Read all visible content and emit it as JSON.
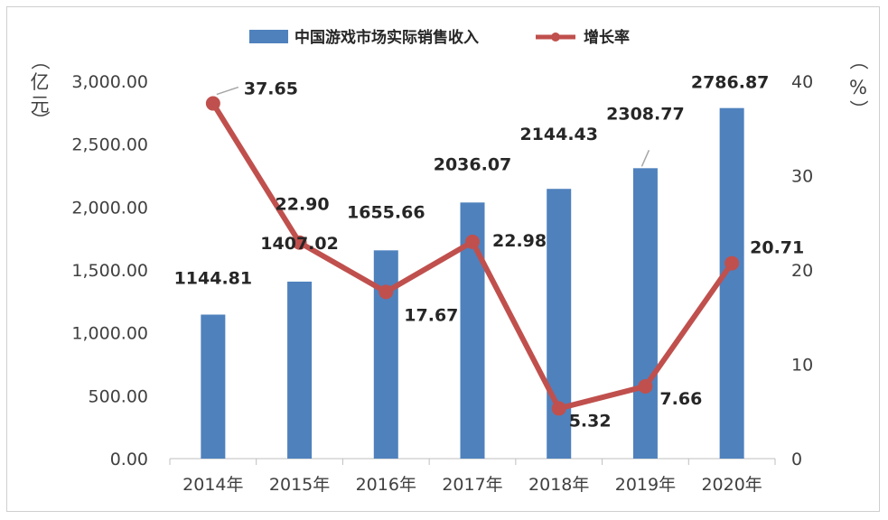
{
  "chart_data": {
    "type": "bar+line",
    "categories": [
      "2014年",
      "2015年",
      "2016年",
      "2017年",
      "2018年",
      "2019年",
      "2020年"
    ],
    "series": [
      {
        "name": "中国游戏市场实际销售收入",
        "type": "bar",
        "axis": "left",
        "color": "#4f81bd",
        "values": [
          1144.81,
          1407.02,
          1655.66,
          2036.07,
          2144.43,
          2308.77,
          2786.87
        ],
        "labels": [
          "1144.81",
          "1407.02",
          "1655.66",
          "2036.07",
          "2144.43",
          "2308.77",
          "2786.87"
        ]
      },
      {
        "name": "增长率",
        "type": "line",
        "axis": "right",
        "color": "#c0504d",
        "values": [
          37.65,
          22.9,
          17.67,
          22.98,
          5.32,
          7.66,
          20.71
        ],
        "labels": [
          "37.65",
          "22.90",
          "17.67",
          "22.98",
          "5.32",
          "7.66",
          "20.71"
        ]
      }
    ],
    "y_left": {
      "range": [
        0,
        3000
      ],
      "ticks": [
        "0.00",
        "500.00",
        "1,000.00",
        "1,500.00",
        "2,000.00",
        "2,500.00",
        "3,000.00"
      ],
      "unit_chars": [
        "（",
        "亿",
        "元",
        "）"
      ]
    },
    "y_right": {
      "range": [
        0,
        40
      ],
      "ticks": [
        "0",
        "10",
        "20",
        "30",
        "40"
      ],
      "unit_chars": [
        "（",
        "%",
        "）"
      ]
    },
    "legend": {
      "position": "top"
    },
    "grid": false
  }
}
